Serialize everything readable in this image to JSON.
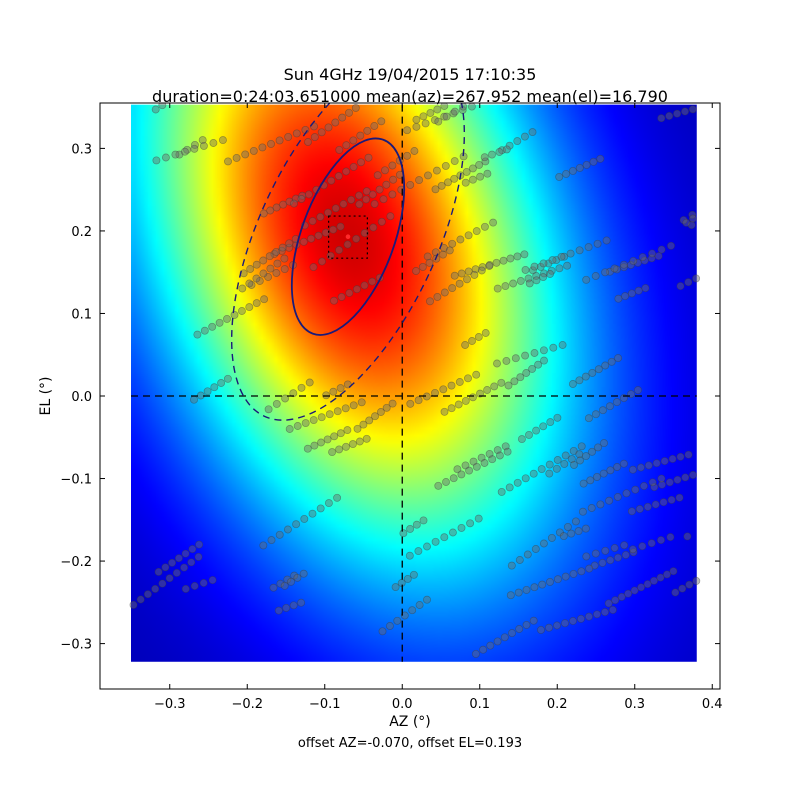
{
  "chart_data": {
    "type": "heatmap",
    "title_line1": "Sun 4GHz 19/04/2015 17:10:35",
    "title_line2": "duration=0:24:03.651000 mean(az)=267.952 mean(el)=16.790",
    "xlabel": "AZ (°)",
    "ylabel": "EL (°)",
    "footer": "offset AZ=-0.070, offset EL=0.193",
    "xlim": [
      -0.39,
      0.41
    ],
    "ylim": [
      -0.355,
      0.355
    ],
    "extent": {
      "x": [
        -0.35,
        0.38
      ],
      "y": [
        -0.322,
        0.353
      ]
    },
    "xticks": [
      -0.3,
      -0.2,
      -0.1,
      0.0,
      0.1,
      0.2,
      0.3,
      0.4
    ],
    "xtick_labels": [
      "−0.3",
      "−0.2",
      "−0.1",
      "0.0",
      "0.1",
      "0.2",
      "0.3",
      "0.4"
    ],
    "yticks": [
      -0.3,
      -0.2,
      -0.1,
      0.0,
      0.1,
      0.2,
      0.3
    ],
    "ytick_labels": [
      "−0.3",
      "−0.2",
      "−0.1",
      "0.0",
      "0.1",
      "0.2",
      "0.3"
    ],
    "colormap": "jet",
    "beam": {
      "center": [
        -0.07,
        0.193
      ],
      "semi_axes": [
        0.06,
        0.125
      ],
      "tilt_deg": -20
    },
    "beam_outer": {
      "center": [
        -0.07,
        0.193
      ],
      "semi_axes": [
        0.115,
        0.24
      ],
      "tilt_deg": -25
    },
    "center_box": {
      "x": [
        -0.095,
        -0.045
      ],
      "y": [
        0.167,
        0.218
      ]
    },
    "peak_marker": [
      -0.07,
      0.193
    ],
    "crosshair": {
      "x": 0.0,
      "y": 0.0
    },
    "scan_samples_approx": 620,
    "colors": {
      "ellipse": "#1a1a7a",
      "points": "#6b6b6b",
      "peak": "#ff2a2a",
      "axes": "#000000"
    }
  }
}
